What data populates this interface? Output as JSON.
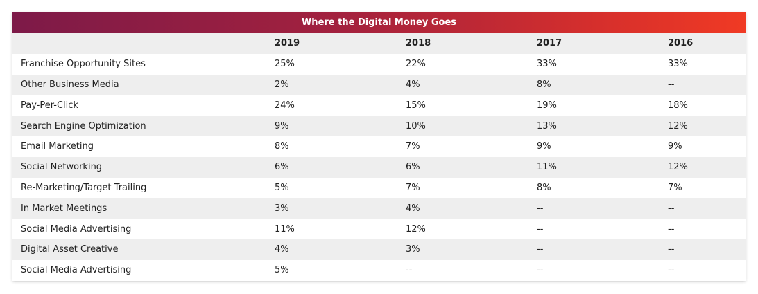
{
  "chart_data": {
    "type": "table",
    "title": "Where the Digital Money Goes",
    "columns": [
      "",
      "2019",
      "2018",
      "2017",
      "2016"
    ],
    "rows": [
      {
        "label": "Franchise Opportunity Sites",
        "values": [
          "25%",
          "22%",
          "33%",
          "33%"
        ]
      },
      {
        "label": "Other Business Media",
        "values": [
          "2%",
          "4%",
          "8%",
          "--"
        ]
      },
      {
        "label": "Pay-Per-Click",
        "values": [
          "24%",
          "15%",
          "19%",
          "18%"
        ]
      },
      {
        "label": "Search Engine Optimization",
        "values": [
          "9%",
          "10%",
          "13%",
          "12%"
        ]
      },
      {
        "label": "Email Marketing",
        "values": [
          "8%",
          "7%",
          "9%",
          "9%"
        ]
      },
      {
        "label": "Social Networking",
        "values": [
          "6%",
          "6%",
          "11%",
          "12%"
        ]
      },
      {
        "label": "Re-Marketing/Target Trailing",
        "values": [
          "5%",
          "7%",
          "8%",
          "7%"
        ]
      },
      {
        "label": "In Market Meetings",
        "values": [
          "3%",
          "4%",
          "--",
          "--"
        ]
      },
      {
        "label": "Social Media Advertising",
        "values": [
          "11%",
          "12%",
          "--",
          "--"
        ]
      },
      {
        "label": "Digital Asset Creative",
        "values": [
          "4%",
          "3%",
          "--",
          "--"
        ]
      },
      {
        "label": "Social Media Advertising",
        "values": [
          "5%",
          "--",
          "--",
          "--"
        ]
      }
    ]
  },
  "colors": {
    "header_gradient_start": "#7d1a48",
    "header_gradient_end": "#f03a24",
    "row_alt": "#eeeeee",
    "text": "#222222"
  }
}
